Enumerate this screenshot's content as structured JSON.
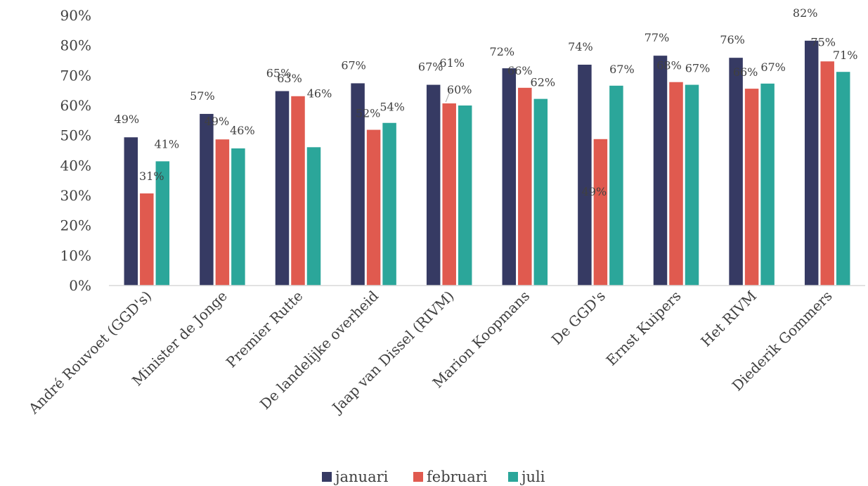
{
  "chart_data": {
    "type": "bar",
    "categories": [
      "André Rouvoet (GGD's)",
      "Minister de Jonge",
      "Premier Rutte",
      "De landelijke overheid",
      "Jaap van Dissel (RIVM)",
      "Marion Koopmans",
      "De GGD's",
      "Ernst Kuipers",
      "Het RIVM",
      "Diederik Gommers"
    ],
    "series": [
      {
        "name": "januari",
        "color": "#363A63",
        "values": [
          0.494,
          0.572,
          0.648,
          0.674,
          0.669,
          0.724,
          0.736,
          0.766,
          0.759,
          0.816
        ],
        "labels": [
          "49%",
          "57%",
          "65%",
          "67%",
          "67%",
          "72%",
          "74%",
          "77%",
          "76%",
          "82%"
        ]
      },
      {
        "name": "februari",
        "color": "#E05A4F",
        "values": [
          0.307,
          0.487,
          0.631,
          0.519,
          0.607,
          0.659,
          0.488,
          0.678,
          0.656,
          0.747
        ],
        "labels": [
          "31%",
          "49%",
          "63%",
          "52%",
          "61%",
          "66%",
          "49%",
          "68%",
          "66%",
          "75%"
        ]
      },
      {
        "name": "juli",
        "color": "#2BA69A",
        "values": [
          0.414,
          0.457,
          0.461,
          0.542,
          0.6,
          0.622,
          0.666,
          0.669,
          0.673,
          0.712
        ],
        "labels": [
          "41%",
          "46%",
          "46%",
          "54%",
          "60%",
          "62%",
          "67%",
          "67%",
          "67%",
          "71%"
        ]
      }
    ],
    "yticks": [
      "0%",
      "10%",
      "20%",
      "30%",
      "40%",
      "50%",
      "60%",
      "70%",
      "80%",
      "90%"
    ],
    "ylim": [
      0,
      0.9
    ],
    "grid": false,
    "legend": "bottom",
    "title": "",
    "xlabel": "",
    "ylabel": ""
  }
}
